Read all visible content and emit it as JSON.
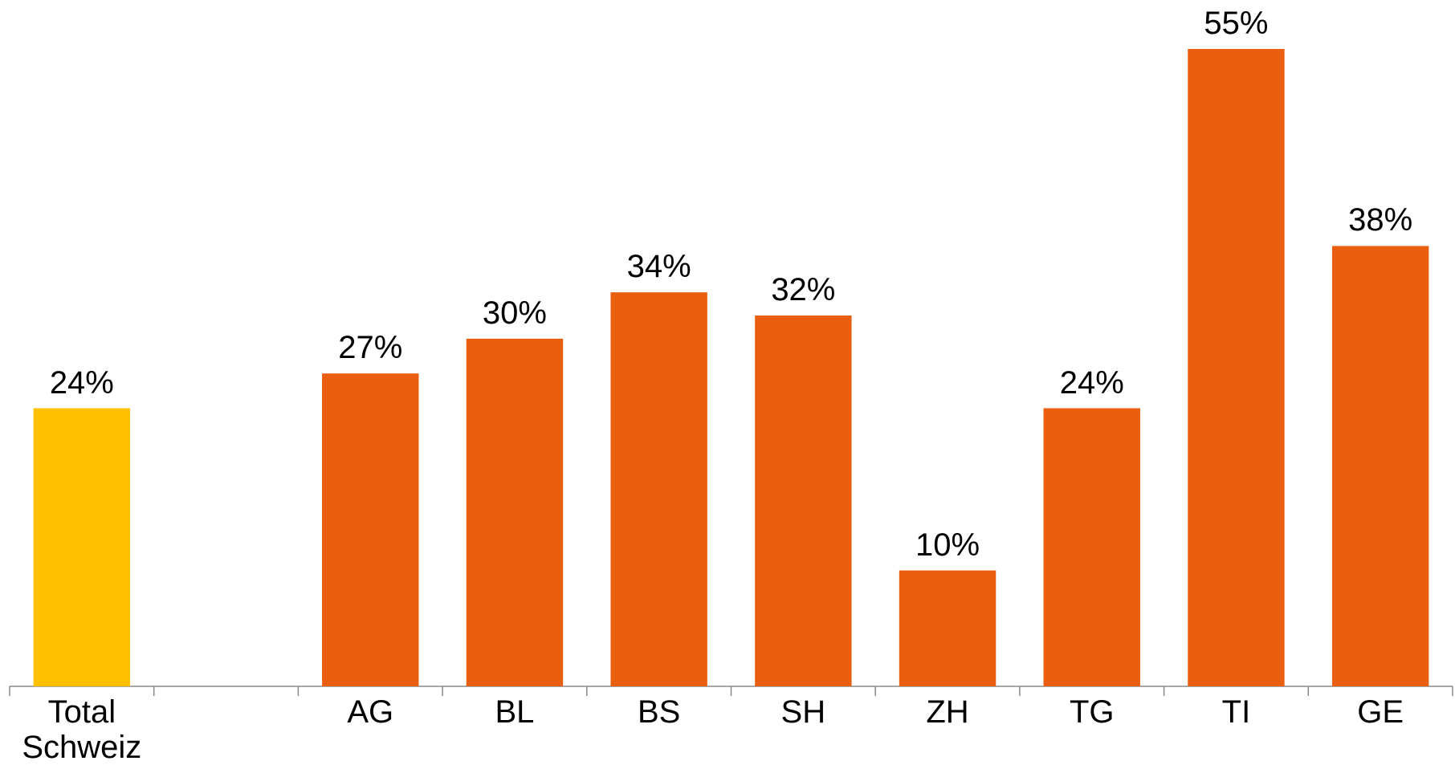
{
  "chart_data": {
    "type": "bar",
    "categories": [
      "Total Schweiz",
      null,
      "AG",
      "BL",
      "BS",
      "SH",
      "ZH",
      "TG",
      "TI",
      "GE"
    ],
    "values": [
      24,
      null,
      27,
      30,
      34,
      32,
      10,
      24,
      55,
      38
    ],
    "value_labels": [
      "24%",
      null,
      "27%",
      "30%",
      "34%",
      "32%",
      "10%",
      "24%",
      "55%",
      "38%"
    ],
    "colors": [
      "#FFC000",
      null,
      "#E95E0F",
      "#E95E0F",
      "#E95E0F",
      "#E95E0F",
      "#E95E0F",
      "#E95E0F",
      "#E95E0F",
      "#E95E0F"
    ]
  }
}
